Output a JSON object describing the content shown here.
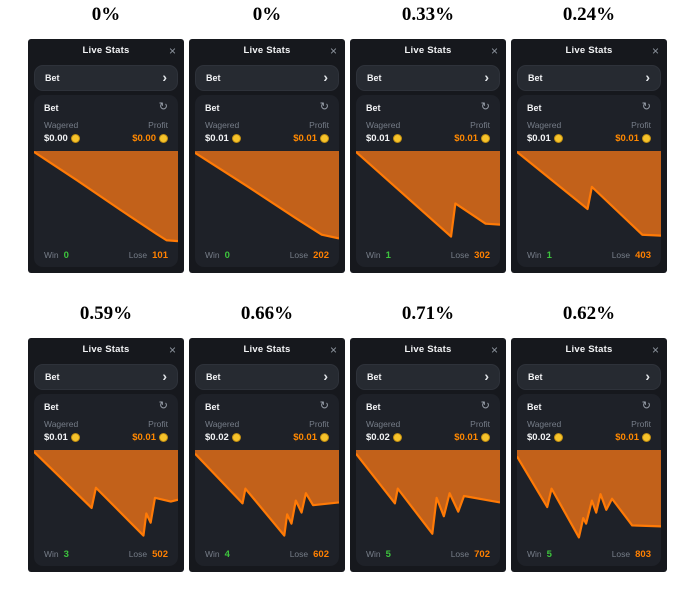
{
  "labels": {
    "live_stats": "Live Stats",
    "bet": "Bet",
    "wagered": "Wagered",
    "profit": "Profit",
    "win": "Win",
    "lose": "Lose"
  },
  "icons": {
    "close": "×",
    "chevron_right": "›",
    "refresh": "↻"
  },
  "colors": {
    "panel_bg": "#16181d",
    "card_bg": "#1e2128",
    "row_bg": "#262a31",
    "chart_fill": "#c2611a",
    "chart_stroke": "#ff7a06",
    "win_green": "#3dc43d",
    "lose_orange": "#ff8000",
    "profit_orange": "#ff8800",
    "coin_gold": "#f6c32b",
    "muted_text": "#767d88"
  },
  "panels": [
    {
      "house_edge": "0%",
      "wagered": "$0.00",
      "profit": "$0.00",
      "win": "0",
      "lose": "101",
      "chart": {
        "type": "area",
        "points": [
          [
            0,
            1
          ],
          [
            30,
            32
          ],
          [
            60,
            64
          ],
          [
            85,
            90
          ],
          [
            92,
            97
          ],
          [
            100,
            98
          ]
        ]
      }
    },
    {
      "house_edge": "0%",
      "wagered": "$0.01",
      "profit": "$0.01",
      "win": "0",
      "lose": "202",
      "chart": {
        "type": "area",
        "points": [
          [
            0,
            2
          ],
          [
            35,
            37
          ],
          [
            70,
            73
          ],
          [
            88,
            91
          ],
          [
            100,
            95
          ]
        ]
      }
    },
    {
      "house_edge": "0.33%",
      "wagered": "$0.01",
      "profit": "$0.01",
      "win": "1",
      "lose": "302",
      "chart": {
        "type": "area",
        "points": [
          [
            0,
            1
          ],
          [
            66,
            93
          ],
          [
            69,
            57
          ],
          [
            90,
            79
          ],
          [
            100,
            80
          ]
        ]
      }
    },
    {
      "house_edge": "0.24%",
      "wagered": "$0.01",
      "profit": "$0.01",
      "win": "1",
      "lose": "403",
      "chart": {
        "type": "area",
        "points": [
          [
            0,
            1
          ],
          [
            49,
            63
          ],
          [
            52,
            39
          ],
          [
            87,
            91
          ],
          [
            100,
            92
          ]
        ]
      }
    },
    {
      "house_edge": "0.59%",
      "wagered": "$0.01",
      "profit": "$0.01",
      "win": "3",
      "lose": "502",
      "chart": {
        "type": "area",
        "points": [
          [
            0,
            2
          ],
          [
            40,
            63
          ],
          [
            43,
            41
          ],
          [
            76,
            93
          ],
          [
            78,
            69
          ],
          [
            81,
            79
          ],
          [
            84,
            52
          ],
          [
            95,
            56
          ],
          [
            100,
            54
          ]
        ]
      }
    },
    {
      "house_edge": "0.66%",
      "wagered": "$0.02",
      "profit": "$0.01",
      "win": "4",
      "lose": "602",
      "chart": {
        "type": "area",
        "points": [
          [
            0,
            4
          ],
          [
            33,
            58
          ],
          [
            35,
            42
          ],
          [
            62,
            93
          ],
          [
            64,
            70
          ],
          [
            67,
            80
          ],
          [
            70,
            55
          ],
          [
            74,
            68
          ],
          [
            77,
            47
          ],
          [
            82,
            60
          ],
          [
            100,
            57
          ]
        ]
      }
    },
    {
      "house_edge": "0.71%",
      "wagered": "$0.02",
      "profit": "$0.01",
      "win": "5",
      "lose": "702",
      "chart": {
        "type": "area",
        "points": [
          [
            0,
            4
          ],
          [
            27,
            58
          ],
          [
            29,
            42
          ],
          [
            53,
            91
          ],
          [
            56,
            52
          ],
          [
            61,
            72
          ],
          [
            65,
            47
          ],
          [
            71,
            67
          ],
          [
            75,
            50
          ],
          [
            100,
            57
          ]
        ]
      }
    },
    {
      "house_edge": "0.62%",
      "wagered": "$0.02",
      "profit": "$0.01",
      "win": "5",
      "lose": "803",
      "chart": {
        "type": "area",
        "points": [
          [
            0,
            7
          ],
          [
            21,
            62
          ],
          [
            24,
            42
          ],
          [
            43,
            95
          ],
          [
            46,
            74
          ],
          [
            48,
            80
          ],
          [
            52,
            55
          ],
          [
            55,
            68
          ],
          [
            58,
            48
          ],
          [
            62,
            65
          ],
          [
            66,
            53
          ],
          [
            80,
            82
          ],
          [
            100,
            83
          ]
        ]
      }
    }
  ]
}
